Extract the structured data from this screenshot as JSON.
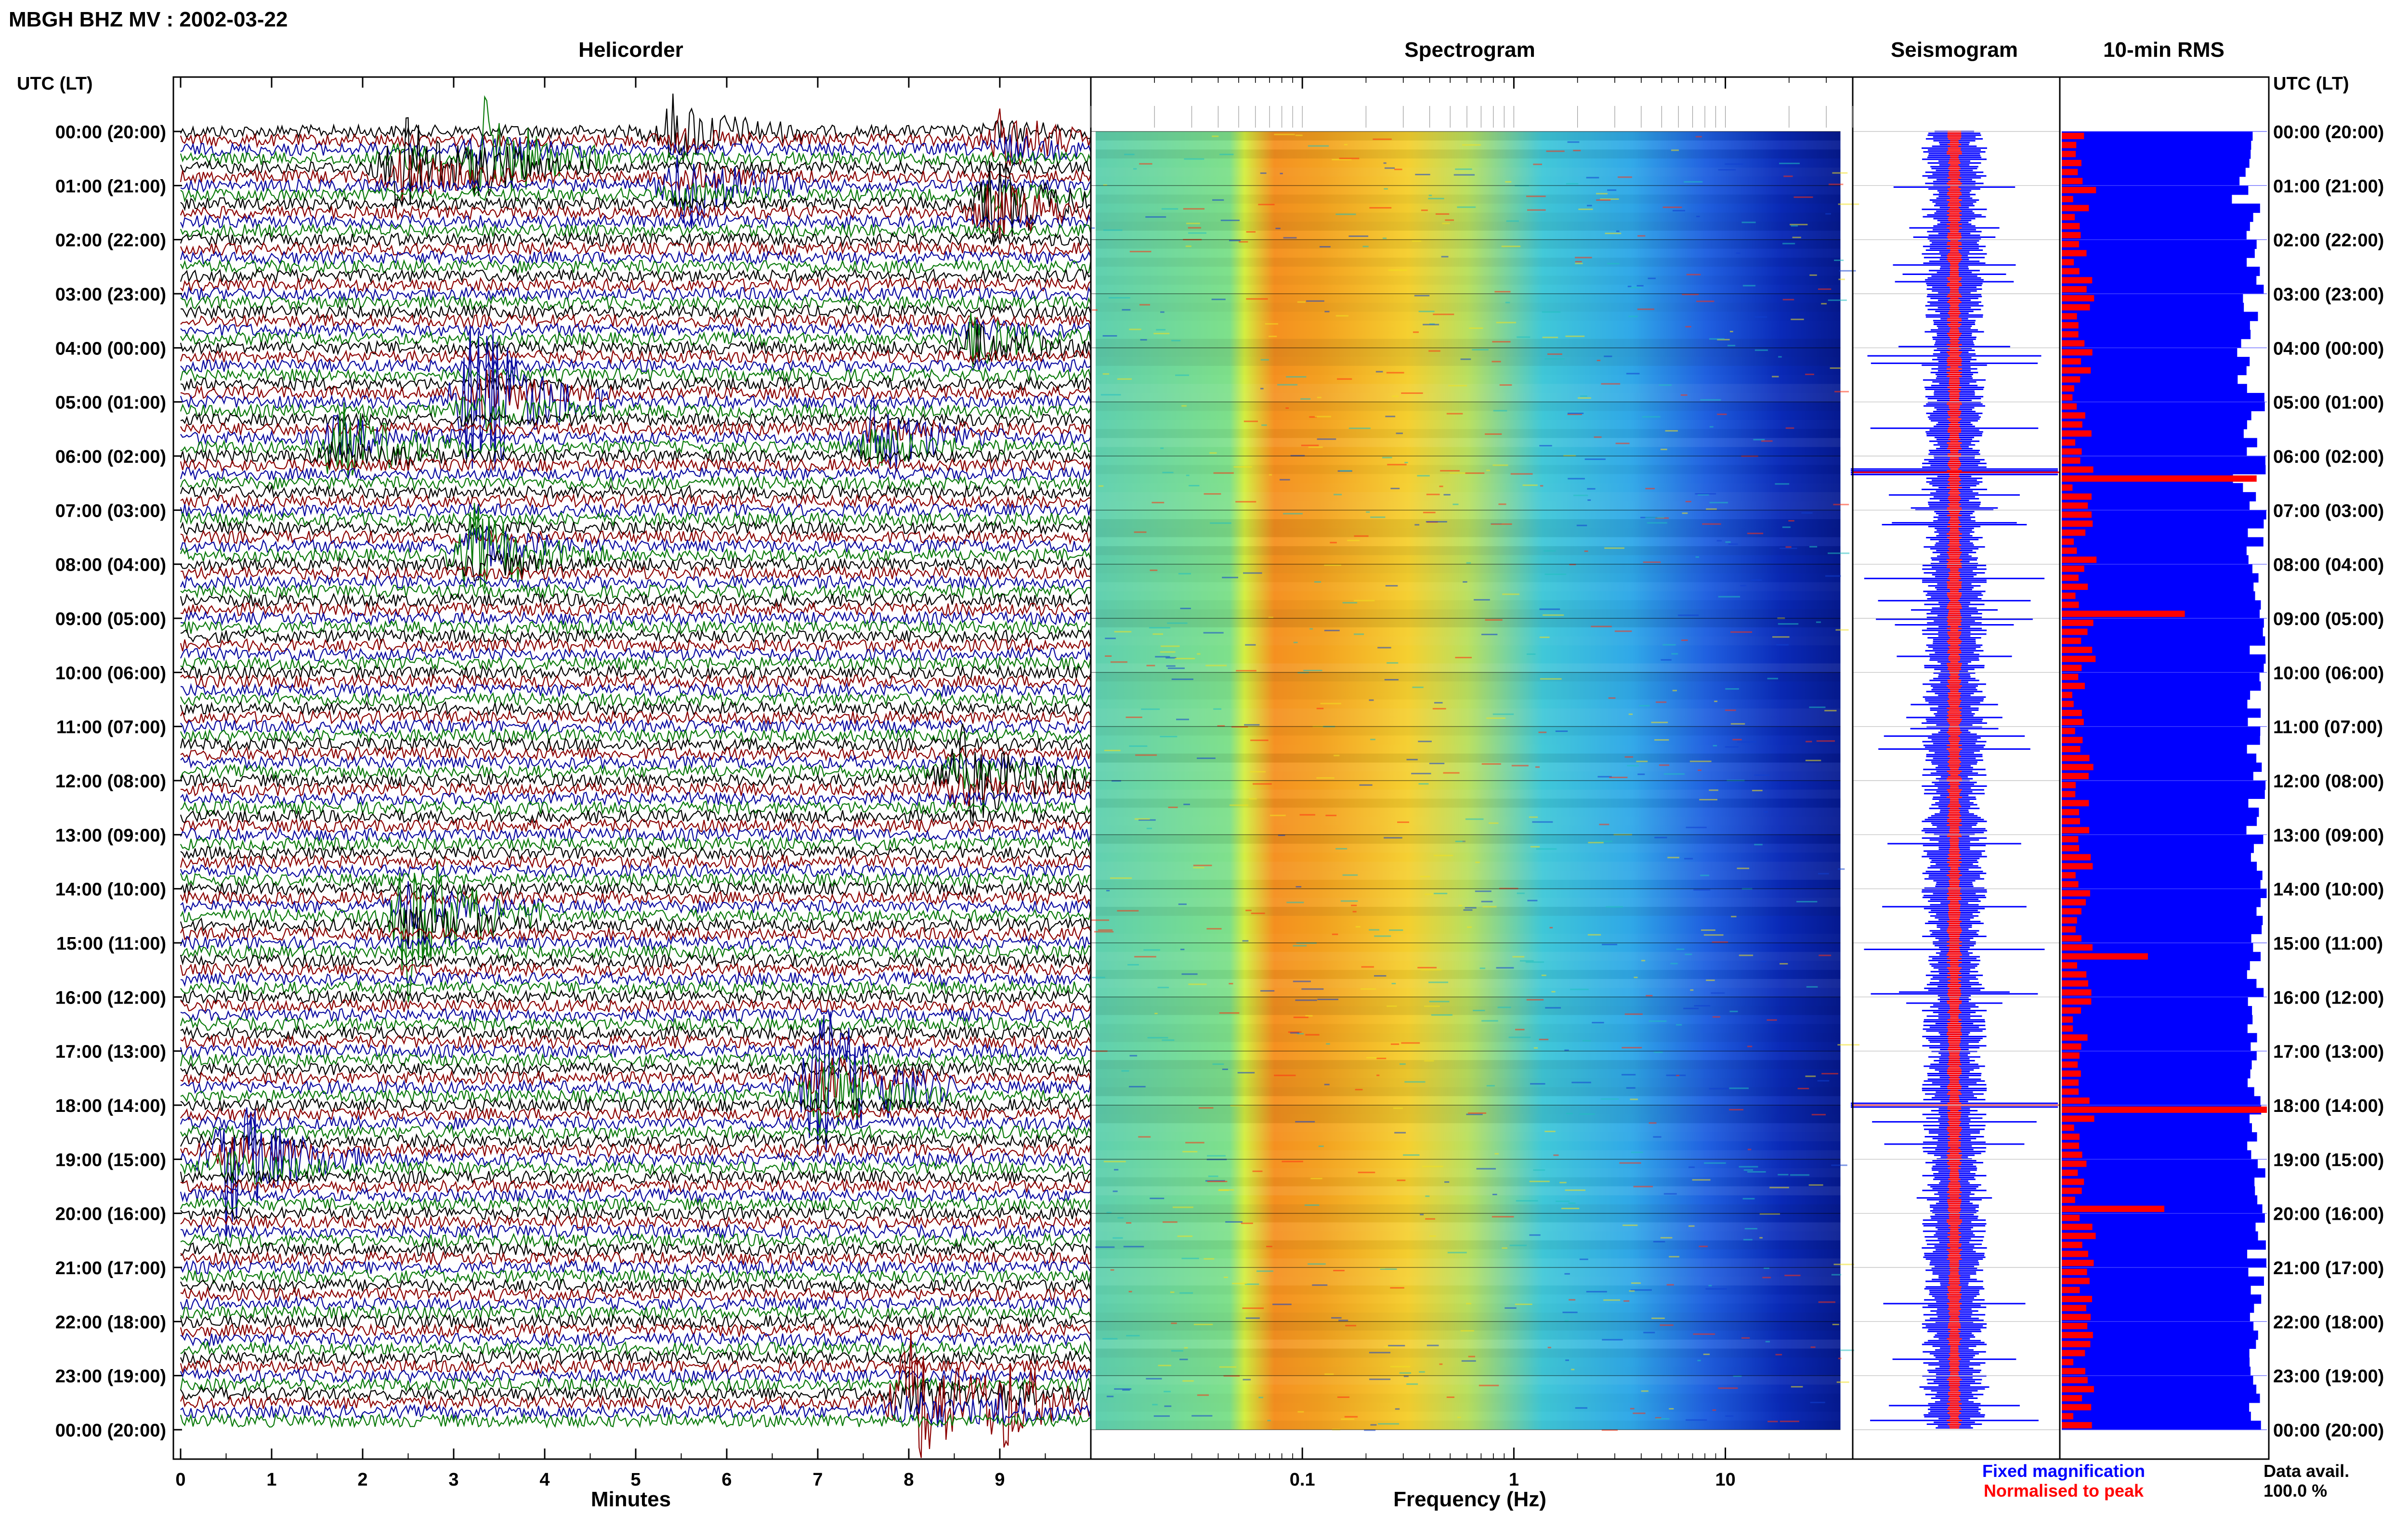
{
  "header": {
    "title": "MBGH BHZ MV : 2002-03-22"
  },
  "panels": {
    "helicorder": {
      "title": "Helicorder",
      "xlabel": "Minutes"
    },
    "spectrogram": {
      "title": "Spectrogram",
      "xlabel": "Frequency (Hz)"
    },
    "seismogram": {
      "title": "Seismogram"
    },
    "rms": {
      "title": "10-min RMS"
    }
  },
  "time_axis": {
    "label_left": "UTC (LT)",
    "label_right": "UTC (LT)"
  },
  "legend": {
    "fixed": "Fixed magnification",
    "normalised": "Normalised to peak"
  },
  "data_avail": {
    "label": "Data avail.",
    "value": "100.0 %"
  },
  "colors": {
    "trace_cycle": [
      "#000000",
      "#8b0000",
      "#0a0aa0",
      "#0a7a0a"
    ],
    "seismo_blue": "#0000ff",
    "seismo_red": "#ff0000",
    "rms_blue": "#0000ff",
    "rms_red": "#ff0000"
  },
  "chart_data": [
    {
      "type": "line",
      "panel": "helicorder",
      "title": "Helicorder",
      "xlabel": "Minutes",
      "xlim": [
        0,
        10
      ],
      "xticks": [
        0,
        1,
        2,
        3,
        4,
        5,
        6,
        7,
        8,
        9
      ],
      "yticks": [
        "00:00 (20:00)",
        "01:00 (21:00)",
        "02:00 (22:00)",
        "03:00 (23:00)",
        "04:00 (00:00)",
        "05:00 (01:00)",
        "06:00 (02:00)",
        "07:00 (03:00)",
        "08:00 (04:00)",
        "09:00 (05:00)",
        "10:00 (06:00)",
        "11:00 (07:00)",
        "12:00 (08:00)",
        "13:00 (09:00)",
        "14:00 (10:00)",
        "15:00 (11:00)",
        "16:00 (12:00)",
        "17:00 (13:00)",
        "18:00 (14:00)",
        "19:00 (15:00)",
        "20:00 (16:00)",
        "21:00 (17:00)",
        "22:00 (18:00)",
        "23:00 (19:00)",
        "00:00 (20:00)"
      ],
      "traces_per_hour": 6,
      "events": [
        {
          "hour": 0.0,
          "minute": 5.4,
          "amp": 0.9
        },
        {
          "hour": 0.2,
          "minute": 9.0,
          "amp": 1.0
        },
        {
          "hour": 0.7,
          "minute": 2.4,
          "amp": 1.9
        },
        {
          "hour": 0.5,
          "minute": 3.3,
          "amp": 1.5
        },
        {
          "hour": 1.4,
          "minute": 8.9,
          "amp": 2.0
        },
        {
          "hour": 1.0,
          "minute": 5.5,
          "amp": 1.2
        },
        {
          "hour": 3.9,
          "minute": 8.7,
          "amp": 1.2
        },
        {
          "hour": 5.0,
          "minute": 3.2,
          "amp": 2.6
        },
        {
          "hour": 5.8,
          "minute": 1.7,
          "amp": 1.6
        },
        {
          "hour": 5.7,
          "minute": 7.6,
          "amp": 1.4
        },
        {
          "hour": 7.8,
          "minute": 3.2,
          "amp": 1.7
        },
        {
          "hour": 12.0,
          "minute": 8.5,
          "amp": 1.6
        },
        {
          "hour": 14.5,
          "minute": 2.5,
          "amp": 2.3
        },
        {
          "hour": 17.7,
          "minute": 7.0,
          "amp": 3.3
        },
        {
          "hour": 19.0,
          "minute": 0.5,
          "amp": 2.0
        },
        {
          "hour": 23.5,
          "minute": 8.0,
          "amp": 2.0
        },
        {
          "hour": 23.5,
          "minute": 9.0,
          "amp": 1.0
        }
      ]
    },
    {
      "type": "heatmap",
      "panel": "spectrogram",
      "title": "Spectrogram",
      "xlabel": "Frequency (Hz)",
      "xscale": "log",
      "xlim": [
        0.01,
        40
      ],
      "xticks": [
        0.1,
        1,
        10
      ],
      "xtick_labels": [
        "0.1",
        "1",
        "10"
      ],
      "peak_band_hz": [
        0.12,
        0.5
      ],
      "rows": 144
    },
    {
      "type": "line",
      "panel": "seismogram",
      "title": "Seismogram",
      "series": [
        {
          "name": "Fixed magnification",
          "color": "#0000ff"
        },
        {
          "name": "Normalised to peak",
          "color": "#ff0000"
        }
      ],
      "spikes_hours": [
        6.3,
        18.0
      ]
    },
    {
      "type": "bar",
      "panel": "rms",
      "title": "10-min RMS",
      "orientation": "horizontal",
      "interval_minutes": 10,
      "hours": 24,
      "red_peaks": [
        {
          "hour": 6.4,
          "value": 0.95
        },
        {
          "hour": 8.8,
          "value": 0.6
        },
        {
          "hour": 15.1,
          "value": 0.42
        },
        {
          "hour": 18.0,
          "value": 1.0
        },
        {
          "hour": 19.9,
          "value": 0.5
        }
      ],
      "data_available_percent": 100.0
    }
  ]
}
